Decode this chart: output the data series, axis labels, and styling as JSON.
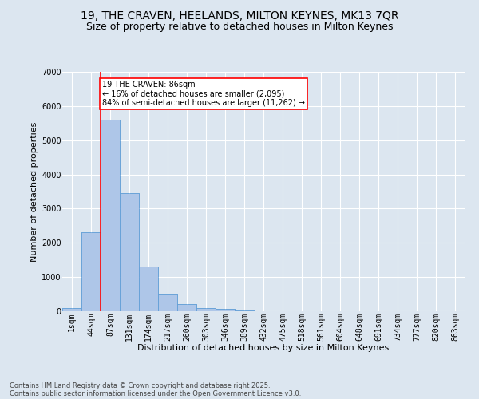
{
  "title_line1": "19, THE CRAVEN, HEELANDS, MILTON KEYNES, MK13 7QR",
  "title_line2": "Size of property relative to detached houses in Milton Keynes",
  "xlabel": "Distribution of detached houses by size in Milton Keynes",
  "ylabel": "Number of detached properties",
  "categories": [
    "1sqm",
    "44sqm",
    "87sqm",
    "131sqm",
    "174sqm",
    "217sqm",
    "260sqm",
    "303sqm",
    "346sqm",
    "389sqm",
    "432sqm",
    "475sqm",
    "518sqm",
    "561sqm",
    "604sqm",
    "648sqm",
    "691sqm",
    "734sqm",
    "777sqm",
    "820sqm",
    "863sqm"
  ],
  "values": [
    100,
    2300,
    5600,
    3450,
    1300,
    500,
    200,
    100,
    75,
    30,
    0,
    0,
    0,
    0,
    0,
    0,
    0,
    0,
    0,
    0,
    0
  ],
  "bar_color": "#aec6e8",
  "bar_edge_color": "#5b9bd5",
  "ylim": [
    0,
    7000
  ],
  "yticks": [
    0,
    1000,
    2000,
    3000,
    4000,
    5000,
    6000,
    7000
  ],
  "annotation_line1": "19 THE CRAVEN: 86sqm",
  "annotation_line2": "← 16% of detached houses are smaller (2,095)",
  "annotation_line3": "84% of semi-detached houses are larger (11,262) →",
  "footer_line1": "Contains HM Land Registry data © Crown copyright and database right 2025.",
  "footer_line2": "Contains public sector information licensed under the Open Government Licence v3.0.",
  "background_color": "#dce6f0",
  "plot_background_color": "#dce6f0",
  "grid_color": "#ffffff",
  "title_fontsize": 10,
  "subtitle_fontsize": 9,
  "tick_fontsize": 7,
  "ylabel_fontsize": 8,
  "xlabel_fontsize": 8,
  "footer_fontsize": 6,
  "annotation_fontsize": 7,
  "red_line_bin_index": 1.5
}
